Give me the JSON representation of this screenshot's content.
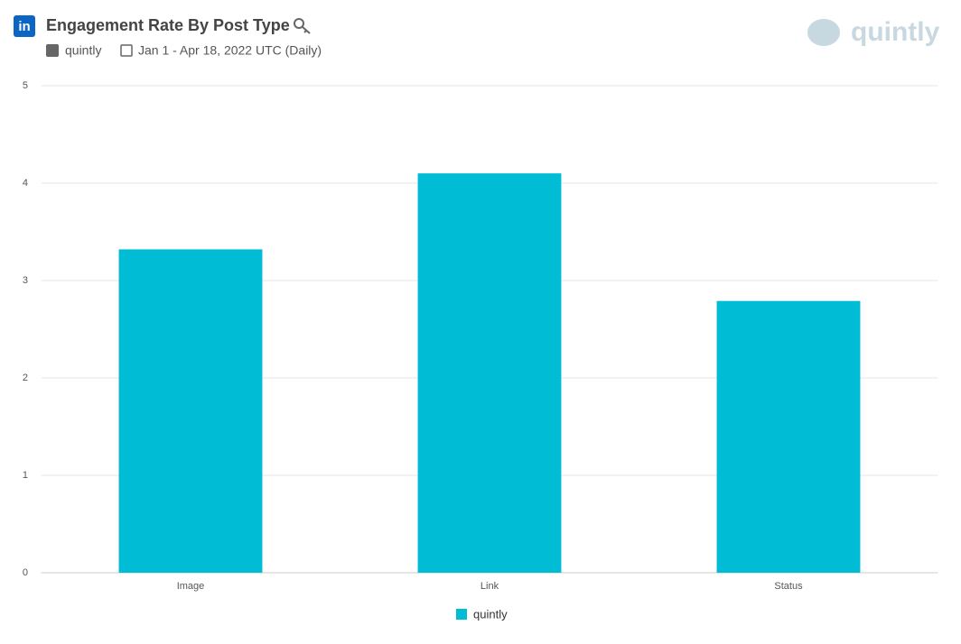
{
  "chart_data": {
    "type": "bar",
    "title": "Engagement Rate By Post Type",
    "profile": "quintly",
    "date_range": "Jan 1 - Apr 18, 2022 UTC (Daily)",
    "brand": "quintly",
    "categories": [
      "Image",
      "Link",
      "Status"
    ],
    "series": [
      {
        "name": "quintly",
        "color": "#00bcd4",
        "values": [
          3.32,
          4.1,
          2.79
        ]
      }
    ],
    "ylim": [
      0,
      5
    ],
    "yticks": [
      0,
      1,
      2,
      3,
      4,
      5
    ],
    "grid": true
  }
}
